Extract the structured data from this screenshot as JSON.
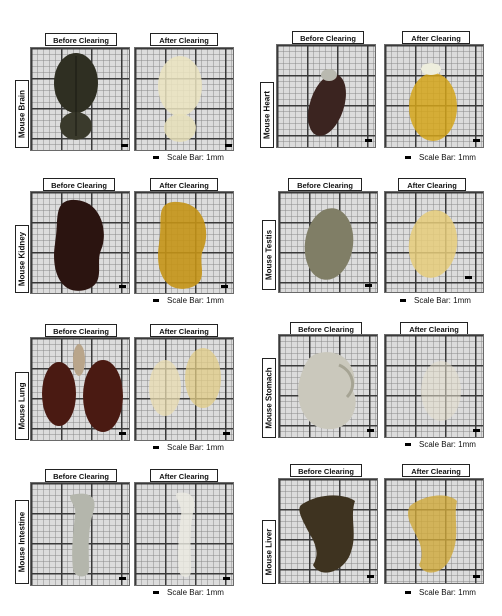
{
  "headers": {
    "before": "Before Clearing",
    "after": "After Clearing"
  },
  "scale_label": "Scale Bar: 1mm",
  "panels": [
    {
      "organ": "Mouse Brain"
    },
    {
      "organ": "Mouse Heart"
    },
    {
      "organ": "Mouse Kidney"
    },
    {
      "organ": "Mouse Testis"
    },
    {
      "organ": "Mouse Lung"
    },
    {
      "organ": "Mouse Stomach"
    },
    {
      "organ": "Mouse Intestine"
    },
    {
      "organ": "Mouse Liver"
    }
  ],
  "colors": {
    "before_dark": "#3b2a1e",
    "after_yellow": "#d7a52a",
    "after_pale": "#ece3b8"
  }
}
